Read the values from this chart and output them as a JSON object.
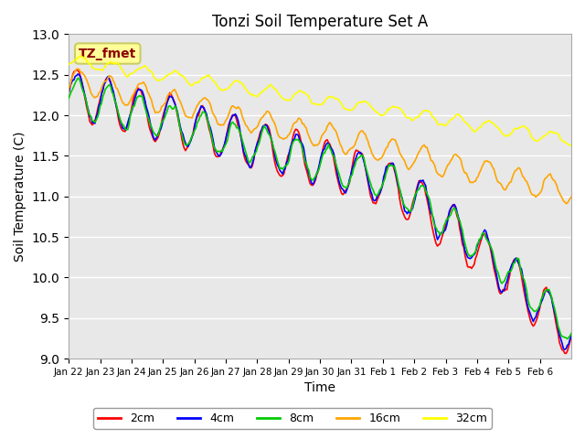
{
  "title": "Tonzi Soil Temperature Set A",
  "xlabel": "Time",
  "ylabel": "Soil Temperature (C)",
  "ylim": [
    9.0,
    13.0
  ],
  "yticks": [
    9.0,
    9.5,
    10.0,
    10.5,
    11.0,
    11.5,
    12.0,
    12.5,
    13.0
  ],
  "colors": {
    "2cm": "#FF0000",
    "4cm": "#0000FF",
    "8cm": "#00CC00",
    "16cm": "#FFA500",
    "32cm": "#FFFF00"
  },
  "legend_label": "TZ_fmet",
  "legend_bg": "#FFFF99",
  "legend_border": "#CCCC66",
  "plot_bg": "#E8E8E8",
  "fig_bg": "#FFFFFF",
  "xtick_labels": [
    "Jan 22",
    "Jan 23",
    "Jan 24",
    "Jan 25",
    "Jan 26",
    "Jan 27",
    "Jan 28",
    "Jan 29",
    "Jan 30",
    "Jan 31",
    "Feb 1",
    "Feb 2",
    "Feb 3",
    "Feb 4",
    "Feb 5",
    "Feb 6"
  ],
  "line_width": 1.2
}
